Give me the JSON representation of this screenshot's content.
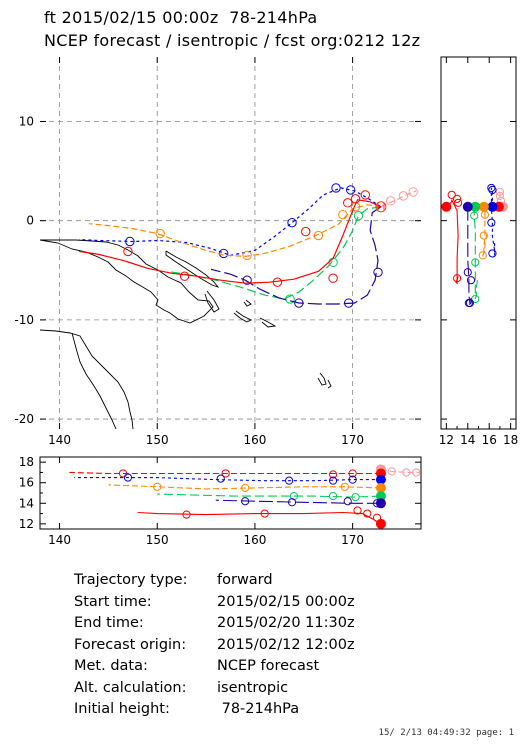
{
  "header": {
    "line1": "ft 2015/02/15 00:00z  78-214hPa",
    "line2": "NCEP forecast / isentropic / fcst org:0212 12z"
  },
  "info": {
    "rows": [
      {
        "label": "Trajectory type:",
        "value": "forward"
      },
      {
        "label": "Start time:",
        "value": "2015/02/15 00:00z"
      },
      {
        "label": "End time:",
        "value": "2015/02/20 11:30z"
      },
      {
        "label": "Forecast origin:",
        "value": "2015/02/12 12:00z"
      },
      {
        "label": "Met. data:",
        "value": "NCEP forecast"
      },
      {
        "label": "Alt. calculation:",
        "value": "isentropic"
      },
      {
        "label": "Initial height:",
        "value": " 78-214hPa"
      }
    ]
  },
  "footer": "15/ 2/13 04:49:32 page: 1",
  "chart_data": [
    {
      "type": "line",
      "panel": "map",
      "xlim": [
        138,
        177
      ],
      "ylim": [
        -21,
        16.5
      ],
      "xticks": [
        140,
        150,
        160,
        170
      ],
      "yticks": [
        -20,
        -10,
        0,
        10
      ],
      "grid": true,
      "series": [
        {
          "color": "#ff9a9a",
          "dash": "6,3",
          "x": [
            172.9,
            173.5,
            174.5,
            175.5,
            176.5
          ],
          "y": [
            1.4,
            1.7,
            2.1,
            2.6,
            3.0
          ],
          "markers": [
            [
              173.9,
              2.0
            ],
            [
              175.2,
              2.5
            ],
            [
              176.2,
              2.9
            ]
          ]
        },
        {
          "color": "#0000ee",
          "dash": "3,3",
          "x": [
            172.9,
            171.5,
            170.2,
            168.8,
            167.0,
            165.5,
            163.8,
            162.0,
            160.0,
            157.5,
            155.5,
            153.0,
            150.0,
            147.5,
            144.0,
            142.0
          ],
          "y": [
            1.4,
            2.3,
            3.0,
            3.3,
            2.6,
            1.2,
            -0.2,
            -1.6,
            -3.0,
            -3.5,
            -2.8,
            -2.2,
            -2.0,
            -2.1,
            -2.0,
            -1.9
          ],
          "markers": [
            [
              169.8,
              3.1
            ],
            [
              168.3,
              3.3
            ],
            [
              163.8,
              -0.2
            ],
            [
              156.8,
              -3.3
            ],
            [
              147.2,
              -2.1
            ]
          ]
        },
        {
          "color": "#ff8800",
          "dash": "6,3",
          "x": [
            172.9,
            171.5,
            170.0,
            168.5,
            166.0,
            163.5,
            161.0,
            159.0,
            157.0,
            155.0,
            152.5,
            150.0,
            147.5,
            145.0,
            143.0
          ],
          "y": [
            1.4,
            1.6,
            1.2,
            -0.4,
            -1.6,
            -2.6,
            -3.3,
            -3.6,
            -3.5,
            -3.0,
            -2.2,
            -1.3,
            -0.8,
            -0.5,
            -0.3
          ],
          "markers": [
            [
              170.3,
              1.4
            ],
            [
              169.0,
              0.6
            ],
            [
              166.5,
              -1.5
            ],
            [
              159.2,
              -3.5
            ],
            [
              150.3,
              -1.3
            ]
          ]
        },
        {
          "color": "#00cc55",
          "dash": "9,4",
          "x": [
            172.9,
            171.5,
            170.6,
            170.0,
            169.0,
            167.5,
            166.0,
            164.5,
            163.0,
            161.0,
            158.5,
            156.0,
            153.5,
            151.0
          ],
          "y": [
            1.4,
            1.2,
            0.5,
            -1.0,
            -2.8,
            -4.6,
            -6.0,
            -7.2,
            -7.9,
            -7.5,
            -6.7,
            -6.0,
            -5.5,
            -5.1
          ],
          "markers": [
            [
              170.6,
              0.5
            ],
            [
              168.0,
              -4.2
            ],
            [
              163.6,
              -7.9
            ]
          ]
        },
        {
          "color": "#2200aa",
          "dash": "14,4",
          "x": [
            172.9,
            172.0,
            171.8,
            172.3,
            172.6,
            172.3,
            171.5,
            170.2,
            168.5,
            166.5,
            164.5,
            162.5,
            160.5,
            159.0,
            157.5,
            155.5
          ],
          "y": [
            1.4,
            0.8,
            -1.0,
            -2.5,
            -4.0,
            -6.0,
            -7.5,
            -8.3,
            -8.4,
            -8.4,
            -8.3,
            -7.8,
            -6.9,
            -6.0,
            -5.4,
            -4.9
          ],
          "markers": [
            [
              172.6,
              -5.2
            ],
            [
              169.6,
              -8.3
            ],
            [
              164.5,
              -8.3
            ],
            [
              159.2,
              -6.0
            ]
          ]
        },
        {
          "color": "#ff0000",
          "dash": "",
          "x": [
            172.9,
            171.8,
            170.5,
            170.0,
            169.0,
            168.0,
            166.5,
            164.0,
            161.5,
            159.0,
            156.5,
            154.0,
            151.5,
            149.0,
            146.5,
            144.0,
            142.0
          ],
          "y": [
            1.4,
            1.9,
            2.1,
            1.0,
            -1.5,
            -3.8,
            -5.1,
            -5.9,
            -6.2,
            -6.3,
            -6.0,
            -5.6,
            -5.3,
            -4.8,
            -4.0,
            -3.4,
            -3.1
          ],
          "markers": [
            [
              171.3,
              2.6
            ],
            [
              170.3,
              2.2
            ],
            [
              169.5,
              1.8
            ],
            [
              168.0,
              -5.8
            ],
            [
              165.2,
              -1.1
            ],
            [
              162.3,
              -6.2
            ],
            [
              152.8,
              -5.6
            ],
            [
              147.0,
              -3.1
            ]
          ]
        }
      ]
    },
    {
      "type": "line",
      "panel": "height-vs-latitude",
      "xlim": [
        11.5,
        18.5
      ],
      "ylim": [
        -21,
        16.5
      ],
      "xticks": [
        12,
        14,
        16,
        18
      ],
      "grid": false
    },
    {
      "type": "line",
      "panel": "height-vs-longitude",
      "xlim": [
        138,
        177
      ],
      "ylim": [
        11.5,
        18.5
      ],
      "xticks": [
        140,
        150,
        160,
        170
      ],
      "yticks": [
        12,
        14,
        16,
        18
      ],
      "grid": false,
      "series": [
        {
          "color": "#ff9a9a",
          "dash": "6,3",
          "start": 17.3,
          "x": [
            172.9,
            174.0,
            175.5,
            176.8
          ],
          "y": [
            17.3,
            17.1,
            17.0,
            17.0
          ],
          "markers": [
            [
              174.0,
              17.1
            ],
            [
              175.5,
              17.0
            ],
            [
              176.5,
              17.0
            ]
          ]
        },
        {
          "color": "#ff0000",
          "dash": "6,3",
          "start": 16.9,
          "x": [
            172.9,
            170.0,
            165.0,
            160.0,
            155.0,
            150.0,
            145.0,
            141.0
          ],
          "y": [
            16.9,
            16.9,
            16.9,
            16.9,
            16.9,
            16.9,
            16.9,
            17.0
          ],
          "markers": [
            [
              170.0,
              16.9
            ],
            [
              168.0,
              16.8
            ],
            [
              157.0,
              16.9
            ],
            [
              146.5,
              16.9
            ]
          ]
        },
        {
          "color": "#0000ee",
          "dash": "3,3",
          "start": 16.3,
          "x": [
            172.9,
            170.0,
            166.0,
            161.0,
            156.0,
            150.0,
            145.0,
            141.5
          ],
          "y": [
            16.3,
            16.3,
            16.2,
            16.2,
            16.3,
            16.5,
            16.5,
            16.5
          ],
          "markers": [
            [
              170.0,
              16.3
            ],
            [
              168.0,
              16.2
            ],
            [
              163.5,
              16.2
            ],
            [
              156.5,
              16.4
            ],
            [
              147.0,
              16.5
            ]
          ]
        },
        {
          "color": "#ff8800",
          "dash": "6,3",
          "start": 15.5,
          "x": [
            172.9,
            169.0,
            165.0,
            160.0,
            155.0,
            150.0,
            145.0
          ],
          "y": [
            15.5,
            15.6,
            15.6,
            15.5,
            15.4,
            15.6,
            15.8
          ],
          "markers": [
            [
              169.2,
              15.6
            ],
            [
              159.0,
              15.5
            ],
            [
              150.0,
              15.6
            ]
          ]
        },
        {
          "color": "#00cc55",
          "dash": "9,4",
          "start": 14.7,
          "x": [
            172.9,
            170.0,
            166.0,
            162.0,
            158.0,
            154.0,
            150.0
          ],
          "y": [
            14.7,
            14.6,
            14.7,
            14.7,
            14.7,
            14.8,
            14.9
          ],
          "markers": [
            [
              170.3,
              14.6
            ],
            [
              168.0,
              14.7
            ],
            [
              164.0,
              14.7
            ]
          ]
        },
        {
          "color": "#2200aa",
          "dash": "14,4",
          "start": 14.0,
          "x": [
            172.9,
            170.0,
            165.0,
            160.0,
            156.0
          ],
          "y": [
            14.0,
            14.0,
            14.1,
            14.2,
            14.3
          ],
          "markers": [
            [
              172.5,
              14.0
            ],
            [
              169.5,
              14.2
            ],
            [
              163.8,
              14.1
            ],
            [
              159.0,
              14.2
            ]
          ]
        },
        {
          "color": "#ff0000",
          "dash": "",
          "start": 12.0,
          "x": [
            172.9,
            172.0,
            171.0,
            169.0,
            165.0,
            160.0,
            155.0,
            150.0,
            148.0
          ],
          "y": [
            12.0,
            12.5,
            13.0,
            13.1,
            13.0,
            13.0,
            12.9,
            13.0,
            13.1
          ],
          "markers": [
            [
              172.5,
              12.6
            ],
            [
              171.5,
              13.0
            ],
            [
              170.5,
              13.3
            ],
            [
              161.0,
              13.0
            ],
            [
              153.0,
              12.9
            ]
          ]
        }
      ]
    }
  ]
}
